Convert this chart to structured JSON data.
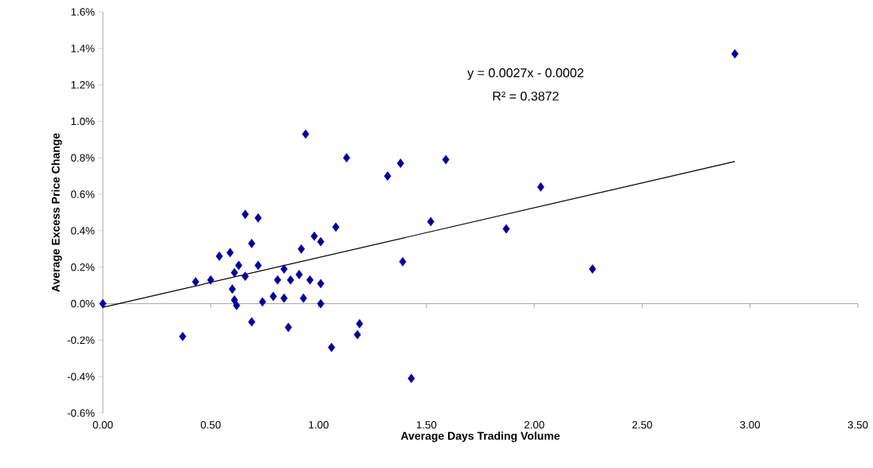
{
  "chart_data": {
    "type": "scatter",
    "xlabel": "Average Days Trading Volume",
    "ylabel": "Average Excess Price Change",
    "annotations": [
      "y = 0.0027x - 0.0002",
      "R² = 0.3872"
    ],
    "xlim": [
      0,
      3.5
    ],
    "xticks": [
      {
        "value": 0,
        "label": "0.00"
      },
      {
        "value": 0.5,
        "label": "0.50"
      },
      {
        "value": 1,
        "label": "1.00"
      },
      {
        "value": 1.5,
        "label": "1.50"
      },
      {
        "value": 2,
        "label": "2.00"
      },
      {
        "value": 2.5,
        "label": "2.50"
      },
      {
        "value": 3,
        "label": "3.00"
      },
      {
        "value": 3.5,
        "label": "3.50"
      }
    ],
    "ylim": [
      -0.6,
      1.6
    ],
    "yticks": [
      {
        "value": -0.6,
        "label": "-0.6%"
      },
      {
        "value": -0.4,
        "label": "-0.4%"
      },
      {
        "value": -0.2,
        "label": "-0.2%"
      },
      {
        "value": 0,
        "label": "0.0%"
      },
      {
        "value": 0.2,
        "label": "0.2%"
      },
      {
        "value": 0.4,
        "label": "0.4%"
      },
      {
        "value": 0.6,
        "label": "0.6%"
      },
      {
        "value": 0.8,
        "label": "0.8%"
      },
      {
        "value": 1.0,
        "label": "1.0%"
      },
      {
        "value": 1.2,
        "label": "1.2%"
      },
      {
        "value": 1.4,
        "label": "1.4%"
      },
      {
        "value": 1.6,
        "label": "1.6%"
      }
    ],
    "marker": "diamond",
    "series": [
      {
        "color": "#000099",
        "x": [
          0,
          0.37,
          0.43,
          0.5,
          0.54,
          0.59,
          0.6,
          0.61,
          0.62,
          0.61,
          0.63,
          0.66,
          0.66,
          0.72,
          0.69,
          0.72,
          0.69,
          0.74,
          0.79,
          0.84,
          0.81,
          0.84,
          0.87,
          0.91,
          0.96,
          1.01,
          0.93,
          1.01,
          0.86,
          0.92,
          0.98,
          1.01,
          1.08,
          1.06,
          1.19,
          1.18,
          0.94,
          1.13,
          1.32,
          1.38,
          1.59,
          1.52,
          1.39,
          1.43,
          2.03,
          1.87,
          2.27,
          2.93
        ],
        "values": [
          0,
          -0.18,
          0.12,
          0.13,
          0.26,
          0.28,
          0.08,
          0.02,
          -0.01,
          0.17,
          0.21,
          0.15,
          0.49,
          0.47,
          0.33,
          0.21,
          -0.1,
          0.01,
          0.04,
          0.03,
          0.13,
          0.19,
          0.13,
          0.16,
          0.13,
          0.11,
          0.03,
          0.0,
          -0.13,
          0.3,
          0.37,
          0.34,
          0.42,
          -0.24,
          -0.11,
          -0.17,
          0.93,
          0.8,
          0.7,
          0.77,
          0.79,
          0.45,
          0.23,
          -0.41,
          0.64,
          0.41,
          0.19,
          1.37
        ]
      },
      {
        "type": "line",
        "color": "#000000",
        "marker": "none",
        "x": [
          0,
          2.93
        ],
        "values": [
          -0.02,
          0.78
        ]
      }
    ]
  }
}
